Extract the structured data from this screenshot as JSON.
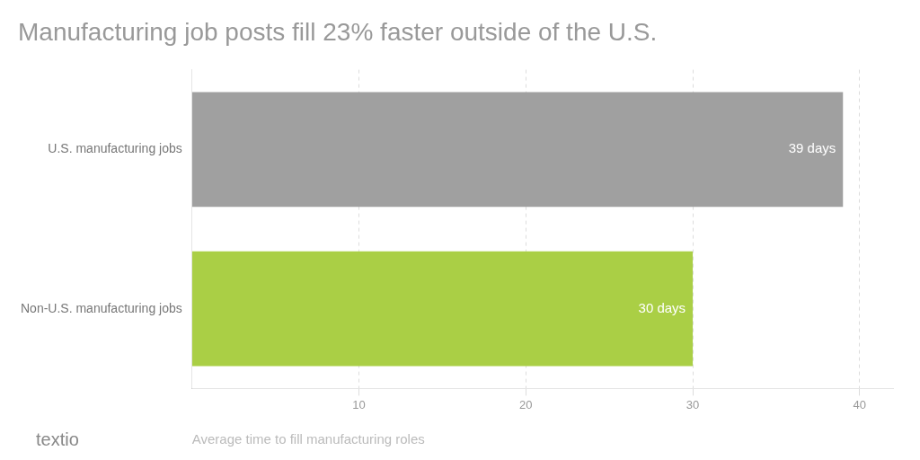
{
  "chart_data": {
    "type": "bar",
    "orientation": "horizontal",
    "title": "Manufacturing job posts fill 23% faster outside of the U.S.",
    "categories": [
      "Non-U.S. manufacturing jobs",
      "U.S. manufacturing jobs"
    ],
    "values": [
      30,
      39
    ],
    "value_labels": [
      "30 days",
      "39 days"
    ],
    "data_labels": true,
    "colors": [
      "#aacf45",
      "#a0a0a0"
    ],
    "xlim": [
      0,
      42
    ],
    "xticks": [
      10,
      20,
      30,
      40
    ],
    "grid": true,
    "annotations": [
      "textio",
      "Average time to fill manufacturing roles"
    ]
  }
}
